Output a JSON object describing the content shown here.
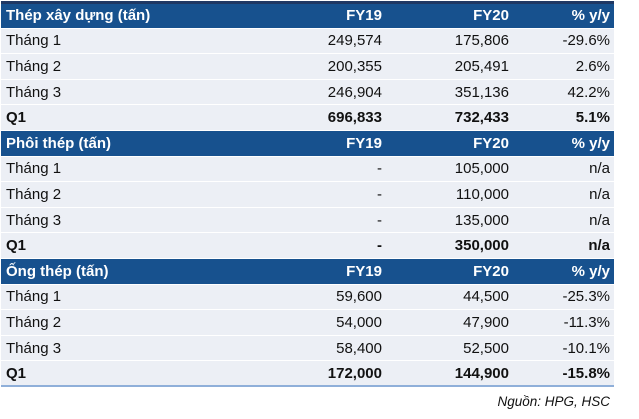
{
  "colors": {
    "top_border_navy": "#1F3864",
    "section_header_blue": "#17518E",
    "row_background": "#ECEFF5",
    "bottom_line_blue": "#8FAFD9",
    "header_text": "#FFFFFF",
    "body_text": "#111111"
  },
  "table": {
    "columns": [
      "FY19",
      "FY20",
      "% y/y"
    ],
    "sections": [
      {
        "title": "Thép xây dựng (tấn)",
        "rows": [
          {
            "label": "Tháng 1",
            "fy19": "249,574",
            "fy20": "175,806",
            "yoy": "-29.6%",
            "emphasis": false
          },
          {
            "label": "Tháng 2",
            "fy19": "200,355",
            "fy20": "205,491",
            "yoy": "2.6%",
            "emphasis": false
          },
          {
            "label": "Tháng 3",
            "fy19": "246,904",
            "fy20": "351,136",
            "yoy": "42.2%",
            "emphasis": false
          },
          {
            "label": "Q1",
            "fy19": "696,833",
            "fy20": "732,433",
            "yoy": "5.1%",
            "emphasis": true
          }
        ]
      },
      {
        "title": "Phôi thép (tấn)",
        "rows": [
          {
            "label": "Tháng 1",
            "fy19": "-",
            "fy20": "105,000",
            "yoy": "n/a",
            "emphasis": false
          },
          {
            "label": "Tháng 2",
            "fy19": "-",
            "fy20": "110,000",
            "yoy": "n/a",
            "emphasis": false
          },
          {
            "label": "Tháng 3",
            "fy19": "-",
            "fy20": "135,000",
            "yoy": "n/a",
            "emphasis": false
          },
          {
            "label": "Q1",
            "fy19": "-",
            "fy20": "350,000",
            "yoy": "n/a",
            "emphasis": true
          }
        ]
      },
      {
        "title": "Ống thép (tấn)",
        "rows": [
          {
            "label": "Tháng 1",
            "fy19": "59,600",
            "fy20": "44,500",
            "yoy": "-25.3%",
            "emphasis": false
          },
          {
            "label": "Tháng 2",
            "fy19": "54,000",
            "fy20": "47,900",
            "yoy": "-11.3%",
            "emphasis": false
          },
          {
            "label": "Tháng 3",
            "fy19": "58,400",
            "fy20": "52,500",
            "yoy": "-10.1%",
            "emphasis": false
          },
          {
            "label": "Q1",
            "fy19": "172,000",
            "fy20": "144,900",
            "yoy": "-15.8%",
            "emphasis": true
          }
        ]
      }
    ]
  },
  "footer": {
    "source": "Nguồn: HPG, HSC"
  }
}
